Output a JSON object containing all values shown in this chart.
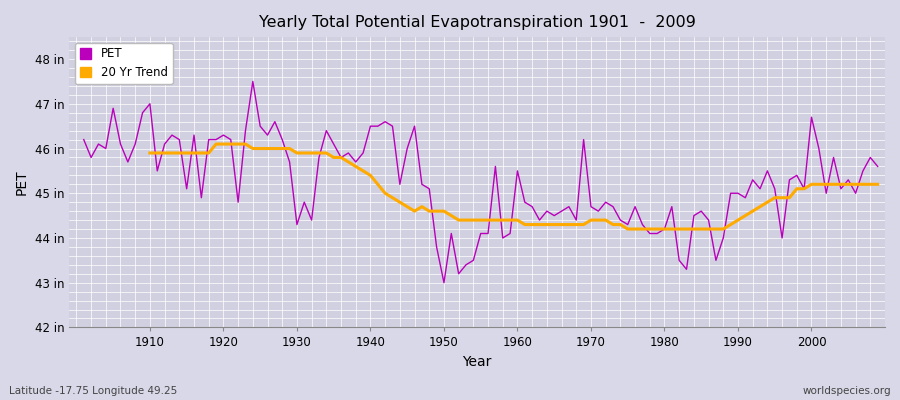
{
  "title": "Yearly Total Potential Evapotranspiration 1901  -  2009",
  "xlabel": "Year",
  "ylabel": "PET",
  "bottom_left": "Latitude -17.75 Longitude 49.25",
  "bottom_right": "worldspecies.org",
  "ylim": [
    42,
    48.5
  ],
  "yticks": [
    42,
    43,
    44,
    45,
    46,
    47,
    48
  ],
  "ytick_labels": [
    "42 in",
    "43 in",
    "44 in",
    "45 in",
    "46 in",
    "47 in",
    "48 in"
  ],
  "xlim": [
    1899,
    2010
  ],
  "xticks": [
    1910,
    1920,
    1930,
    1940,
    1950,
    1960,
    1970,
    1980,
    1990,
    2000
  ],
  "pet_color": "#bb00bb",
  "trend_color": "#ffaa00",
  "background_color": "#d8d8e8",
  "plot_bg_color": "#d0d0e0",
  "grid_color": "#ffffff",
  "years": [
    1901,
    1902,
    1903,
    1904,
    1905,
    1906,
    1907,
    1908,
    1909,
    1910,
    1911,
    1912,
    1913,
    1914,
    1915,
    1916,
    1917,
    1918,
    1919,
    1920,
    1921,
    1922,
    1923,
    1924,
    1925,
    1926,
    1927,
    1928,
    1929,
    1930,
    1931,
    1932,
    1933,
    1934,
    1935,
    1936,
    1937,
    1938,
    1939,
    1940,
    1941,
    1942,
    1943,
    1944,
    1945,
    1946,
    1947,
    1948,
    1949,
    1950,
    1951,
    1952,
    1953,
    1954,
    1955,
    1956,
    1957,
    1958,
    1959,
    1960,
    1961,
    1962,
    1963,
    1964,
    1965,
    1966,
    1967,
    1968,
    1969,
    1970,
    1971,
    1972,
    1973,
    1974,
    1975,
    1976,
    1977,
    1978,
    1979,
    1980,
    1981,
    1982,
    1983,
    1984,
    1985,
    1986,
    1987,
    1988,
    1989,
    1990,
    1991,
    1992,
    1993,
    1994,
    1995,
    1996,
    1997,
    1998,
    1999,
    2000,
    2001,
    2002,
    2003,
    2004,
    2005,
    2006,
    2007,
    2008,
    2009
  ],
  "pet_values": [
    46.2,
    45.8,
    46.1,
    46.0,
    46.9,
    46.1,
    45.7,
    46.1,
    46.8,
    47.0,
    45.5,
    46.1,
    46.3,
    46.2,
    45.1,
    46.3,
    44.9,
    46.2,
    46.2,
    46.3,
    46.2,
    44.8,
    46.4,
    47.5,
    46.5,
    46.3,
    46.6,
    46.2,
    45.7,
    44.3,
    44.8,
    44.4,
    45.8,
    46.4,
    46.1,
    45.8,
    45.9,
    45.7,
    45.9,
    46.5,
    46.5,
    46.6,
    46.5,
    45.2,
    46.0,
    46.5,
    45.2,
    45.1,
    43.8,
    43.0,
    44.1,
    43.2,
    43.4,
    43.5,
    44.1,
    44.1,
    45.6,
    44.0,
    44.1,
    45.5,
    44.8,
    44.7,
    44.4,
    44.6,
    44.5,
    44.6,
    44.7,
    44.4,
    46.2,
    44.7,
    44.6,
    44.8,
    44.7,
    44.4,
    44.3,
    44.7,
    44.3,
    44.1,
    44.1,
    44.2,
    44.7,
    43.5,
    43.3,
    44.5,
    44.6,
    44.4,
    43.5,
    44.0,
    45.0,
    45.0,
    44.9,
    45.3,
    45.1,
    45.5,
    45.1,
    44.0,
    45.3,
    45.4,
    45.1,
    46.7,
    46.0,
    45.0,
    45.8,
    45.1,
    45.3,
    45.0,
    45.5,
    45.8,
    45.6
  ],
  "trend_values": [
    null,
    null,
    null,
    null,
    null,
    null,
    null,
    null,
    null,
    45.9,
    45.9,
    45.9,
    45.9,
    45.9,
    45.9,
    45.9,
    45.9,
    45.9,
    46.1,
    46.1,
    46.1,
    46.1,
    46.1,
    46.0,
    46.0,
    46.0,
    46.0,
    46.0,
    46.0,
    45.9,
    45.9,
    45.9,
    45.9,
    45.9,
    45.8,
    45.8,
    45.7,
    45.6,
    45.5,
    45.4,
    45.2,
    45.0,
    44.9,
    44.8,
    44.7,
    44.6,
    44.7,
    44.6,
    44.6,
    44.6,
    44.5,
    44.4,
    44.4,
    44.4,
    44.4,
    44.4,
    44.4,
    44.4,
    44.4,
    44.4,
    44.3,
    44.3,
    44.3,
    44.3,
    44.3,
    44.3,
    44.3,
    44.3,
    44.3,
    44.4,
    44.4,
    44.4,
    44.3,
    44.3,
    44.2,
    44.2,
    44.2,
    44.2,
    44.2,
    44.2,
    44.2,
    44.2,
    44.2,
    44.2,
    44.2,
    44.2,
    44.2,
    44.2,
    44.3,
    44.4,
    44.5,
    44.6,
    44.7,
    44.8,
    44.9,
    44.9,
    44.9,
    45.1,
    45.1,
    45.2,
    45.2,
    45.2,
    45.2,
    45.2,
    45.2,
    45.2,
    45.2,
    45.2,
    45.2
  ]
}
